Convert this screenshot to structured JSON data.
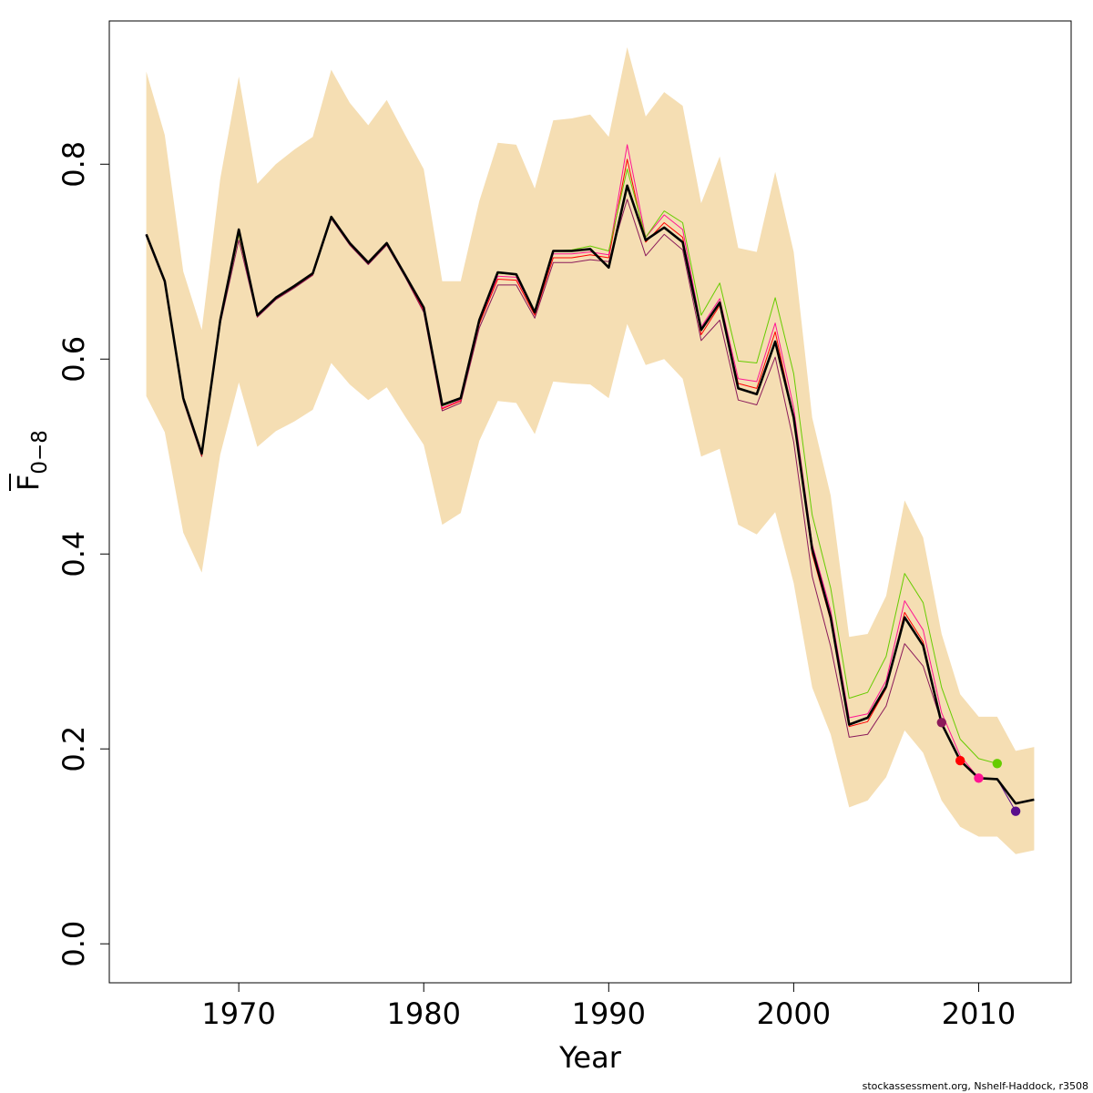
{
  "chart_data": {
    "type": "line",
    "xlabel": "Year",
    "ylabel": "F",
    "ylabel_subscript": "0−8",
    "xlim": [
      1963,
      2015
    ],
    "ylim": [
      -0.04,
      0.947
    ],
    "xticks": [
      1970,
      1980,
      1990,
      2000,
      2010
    ],
    "yticks": [
      0.0,
      0.2,
      0.4,
      0.6,
      0.8
    ],
    "ytick_labels": [
      "0.0",
      "0.2",
      "0.4",
      "0.6",
      "0.8"
    ],
    "grid": false,
    "legend": "none",
    "credit": "stockassessment.org, Nshelf-Haddock, r3508",
    "colors": {
      "band": "#F5DEB3",
      "main": "#000000",
      "peel": [
        "#8B1A5A",
        "#FF0000",
        "#FF1493",
        "#66CC00",
        "#5A0F8C"
      ]
    },
    "years": [
      1965,
      1966,
      1967,
      1968,
      1969,
      1970,
      1971,
      1972,
      1973,
      1974,
      1975,
      1976,
      1977,
      1978,
      1979,
      1980,
      1981,
      1982,
      1983,
      1984,
      1985,
      1986,
      1987,
      1988,
      1989,
      1990,
      1991,
      1992,
      1993,
      1994,
      1995,
      1996,
      1997,
      1998,
      1999,
      2000,
      2001,
      2002,
      2003,
      2004,
      2005,
      2006,
      2007,
      2008,
      2009,
      2010,
      2011,
      2012,
      2013
    ],
    "band_upper": [
      0.895,
      0.83,
      0.69,
      0.63,
      0.785,
      0.89,
      0.78,
      0.8,
      0.815,
      0.828,
      0.897,
      0.863,
      0.84,
      0.866,
      0.83,
      0.795,
      0.68,
      0.68,
      0.762,
      0.822,
      0.82,
      0.775,
      0.845,
      0.847,
      0.851,
      0.828,
      0.92,
      0.849,
      0.874,
      0.86,
      0.76,
      0.808,
      0.714,
      0.71,
      0.792,
      0.71,
      0.54,
      0.46,
      0.315,
      0.318,
      0.357,
      0.455,
      0.417,
      0.318,
      0.256,
      0.233,
      0.233,
      0.198,
      0.202
    ],
    "band_lower": [
      0.562,
      0.525,
      0.422,
      0.381,
      0.502,
      0.576,
      0.51,
      0.526,
      0.536,
      0.548,
      0.596,
      0.574,
      0.558,
      0.571,
      0.541,
      0.512,
      0.43,
      0.442,
      0.516,
      0.557,
      0.555,
      0.523,
      0.577,
      0.575,
      0.574,
      0.56,
      0.636,
      0.594,
      0.6,
      0.58,
      0.5,
      0.508,
      0.43,
      0.42,
      0.443,
      0.37,
      0.263,
      0.215,
      0.14,
      0.147,
      0.171,
      0.219,
      0.196,
      0.147,
      0.12,
      0.11,
      0.11,
      0.092,
      0.096
    ],
    "series": [
      {
        "color": "#000000",
        "values": [
          0.728,
          0.68,
          0.56,
          0.503,
          0.64,
          0.733,
          0.645,
          0.663,
          0.675,
          0.688,
          0.746,
          0.719,
          0.699,
          0.719,
          0.686,
          0.653,
          0.553,
          0.56,
          0.64,
          0.689,
          0.687,
          0.648,
          0.711,
          0.711,
          0.713,
          0.694,
          0.778,
          0.722,
          0.735,
          0.72,
          0.63,
          0.658,
          0.57,
          0.564,
          0.618,
          0.54,
          0.405,
          0.335,
          0.225,
          0.232,
          0.264,
          0.335,
          0.306,
          0.226,
          0.188,
          0.17,
          0.169,
          0.144,
          0.148
        ]
      },
      {
        "color": "#8B1A5A",
        "values": [
          0.726,
          0.678,
          0.557,
          0.5,
          0.636,
          0.722,
          0.643,
          0.661,
          0.673,
          0.686,
          0.744,
          0.717,
          0.697,
          0.717,
          0.684,
          0.648,
          0.547,
          0.555,
          0.632,
          0.676,
          0.676,
          0.642,
          0.699,
          0.699,
          0.702,
          0.7,
          0.764,
          0.706,
          0.728,
          0.712,
          0.619,
          0.64,
          0.558,
          0.553,
          0.602,
          0.515,
          0.377,
          0.305,
          0.212,
          0.215,
          0.244,
          0.308,
          0.285,
          0.227,
          null,
          null,
          null,
          null,
          null
        ]
      },
      {
        "color": "#FF0000",
        "values": [
          0.727,
          0.679,
          0.558,
          0.501,
          0.638,
          0.728,
          0.644,
          0.662,
          0.674,
          0.687,
          0.745,
          0.718,
          0.698,
          0.718,
          0.685,
          0.65,
          0.549,
          0.557,
          0.636,
          0.682,
          0.681,
          0.645,
          0.704,
          0.704,
          0.707,
          0.704,
          0.805,
          0.72,
          0.74,
          0.725,
          0.625,
          0.655,
          0.575,
          0.57,
          0.628,
          0.54,
          0.4,
          0.332,
          0.223,
          0.228,
          0.262,
          0.34,
          0.31,
          0.226,
          0.188,
          null,
          null,
          null,
          null
        ]
      },
      {
        "color": "#FF1493",
        "values": [
          0.728,
          0.68,
          0.559,
          0.502,
          0.639,
          0.73,
          0.645,
          0.663,
          0.675,
          0.688,
          0.746,
          0.719,
          0.699,
          0.719,
          0.686,
          0.651,
          0.55,
          0.558,
          0.638,
          0.685,
          0.684,
          0.647,
          0.708,
          0.708,
          0.71,
          0.707,
          0.82,
          0.725,
          0.748,
          0.733,
          0.633,
          0.662,
          0.58,
          0.577,
          0.637,
          0.55,
          0.41,
          0.342,
          0.232,
          0.236,
          0.27,
          0.352,
          0.322,
          0.237,
          0.193,
          0.17,
          null,
          null,
          null
        ]
      },
      {
        "color": "#66CC00",
        "values": [
          0.727,
          0.68,
          0.558,
          0.502,
          0.638,
          0.728,
          0.645,
          0.663,
          0.675,
          0.688,
          0.746,
          0.719,
          0.699,
          0.719,
          0.686,
          0.652,
          0.552,
          0.559,
          0.64,
          0.688,
          0.687,
          0.648,
          0.711,
          0.712,
          0.716,
          0.711,
          0.795,
          0.725,
          0.752,
          0.74,
          0.645,
          0.678,
          0.598,
          0.596,
          0.663,
          0.585,
          0.44,
          0.365,
          0.252,
          0.258,
          0.295,
          0.38,
          0.35,
          0.263,
          0.21,
          0.19,
          0.185,
          null,
          null
        ]
      },
      {
        "color": "#5A0F8C",
        "values": [
          0.728,
          0.68,
          0.56,
          0.503,
          0.64,
          0.733,
          0.645,
          0.663,
          0.675,
          0.688,
          0.746,
          0.719,
          0.699,
          0.719,
          0.686,
          0.653,
          0.553,
          0.56,
          0.64,
          0.689,
          0.687,
          0.648,
          0.711,
          0.711,
          0.713,
          0.694,
          0.778,
          0.722,
          0.735,
          0.72,
          0.63,
          0.658,
          0.57,
          0.564,
          0.618,
          0.54,
          0.405,
          0.335,
          0.225,
          0.232,
          0.264,
          0.335,
          0.306,
          0.226,
          0.188,
          0.17,
          0.169,
          0.136,
          null
        ]
      }
    ],
    "endpoints": [
      {
        "year": 2008,
        "value": 0.227,
        "color": "#8B1A5A"
      },
      {
        "year": 2009,
        "value": 0.188,
        "color": "#FF0000"
      },
      {
        "year": 2010,
        "value": 0.17,
        "color": "#FF1493"
      },
      {
        "year": 2011,
        "value": 0.185,
        "color": "#66CC00"
      },
      {
        "year": 2012,
        "value": 0.136,
        "color": "#5A0F8C"
      }
    ]
  }
}
